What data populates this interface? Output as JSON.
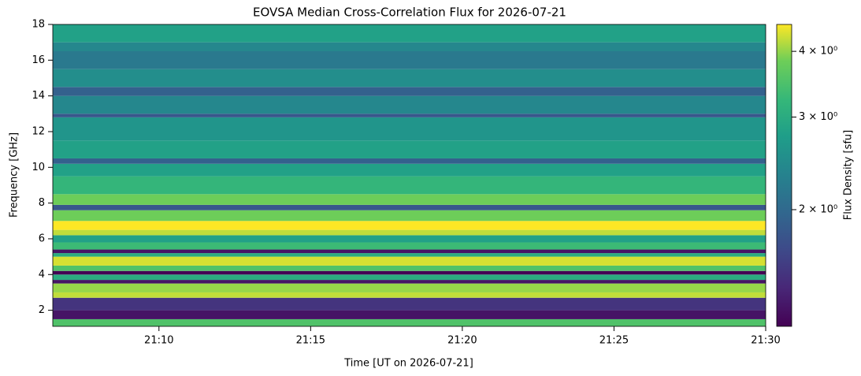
{
  "chart_data": {
    "type": "heatmap",
    "title": "EOVSA Median Cross-Correlation Flux for 2026-07-21",
    "xlabel": "Time [UT on 2026-07-21]",
    "ylabel": "Frequency [GHz]",
    "colorbar_label": "Flux Density [sfu]",
    "colormap": "viridis",
    "color_scale": "log",
    "xlim": [
      6.5,
      30
    ],
    "xticks": [
      {
        "value": 10,
        "label": "21:10"
      },
      {
        "value": 15,
        "label": "21:15"
      },
      {
        "value": 20,
        "label": "21:20"
      },
      {
        "value": 25,
        "label": "21:25"
      },
      {
        "value": 30,
        "label": "21:30"
      }
    ],
    "ylim": [
      1.1,
      18
    ],
    "yticks": [
      2,
      4,
      6,
      8,
      10,
      12,
      14,
      16,
      18
    ],
    "clim": [
      1.2,
      4.5
    ],
    "cticks": [
      {
        "value": 2,
        "label": "2 × 10⁰"
      },
      {
        "value": 3,
        "label": "3 × 10⁰"
      },
      {
        "value": 4,
        "label": "4 × 10⁰"
      }
    ],
    "ybins": [
      1.1,
      1.5,
      2.0,
      2.7,
      3.0,
      3.5,
      3.7,
      4.0,
      4.2,
      4.5,
      5.0,
      5.2,
      5.4,
      5.8,
      6.2,
      6.5,
      7.0,
      7.6,
      7.9,
      8.5,
      9.5,
      10.2,
      10.5,
      11.5,
      12.8,
      13.0,
      14.0,
      14.5,
      15.5,
      16.5,
      17.0,
      18.0
    ],
    "values": [
      3.5,
      1.3,
      1.5,
      4.2,
      4.0,
      1.3,
      3.0,
      1.2,
      3.5,
      4.3,
      3.0,
      1.3,
      3.3,
      2.8,
      4.2,
      4.5,
      3.8,
      1.8,
      3.8,
      3.2,
      2.8,
      1.9,
      2.8,
      2.6,
      1.8,
      2.4,
      1.9,
      2.5,
      2.2,
      2.4,
      2.8
    ]
  }
}
